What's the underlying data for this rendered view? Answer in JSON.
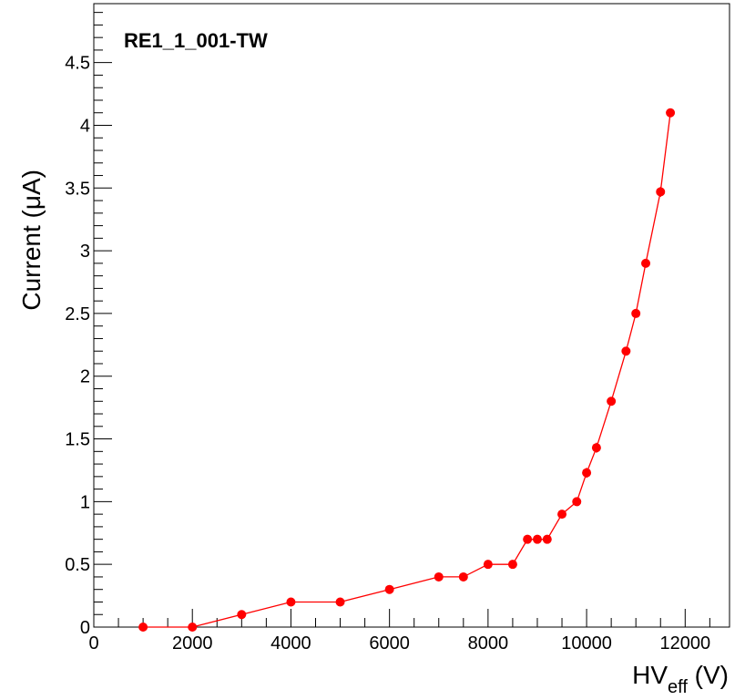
{
  "chart_data": {
    "type": "scatter",
    "title": "RE1_1_001-TW",
    "xlabel": "HV",
    "xlabel_sub": "eff",
    "xlabel_unit": " (V)",
    "ylabel": "Current (μA)",
    "xlim": [
      0,
      12900
    ],
    "ylim": [
      0,
      4.97
    ],
    "x_ticks": [
      0,
      2000,
      4000,
      6000,
      8000,
      10000,
      12000
    ],
    "y_ticks": [
      0,
      0.5,
      1,
      1.5,
      2,
      2.5,
      3,
      3.5,
      4,
      4.5
    ],
    "y_tick_labels": [
      "0",
      "0.5",
      "1",
      "1.5",
      "2",
      "2.5",
      "3",
      "3.5",
      "4",
      "4.5"
    ],
    "x_minor_step": 500,
    "y_minor_step": 0.1,
    "grid": false,
    "series": [
      {
        "color": "#ff0000",
        "x": [
          1000,
          2000,
          3000,
          4000,
          5000,
          6000,
          7000,
          7500,
          8000,
          8500,
          8800,
          9000,
          9200,
          9500,
          9800,
          10000,
          10200,
          10500,
          10800,
          11000,
          11200,
          11500,
          11700
        ],
        "y": [
          0.0,
          0.0,
          0.1,
          0.2,
          0.2,
          0.3,
          0.4,
          0.4,
          0.5,
          0.5,
          0.7,
          0.7,
          0.7,
          0.9,
          1.0,
          1.23,
          1.43,
          1.8,
          2.2,
          2.5,
          2.9,
          3.47,
          4.1
        ],
        "yerr": [
          0.01,
          0.01,
          0.01,
          0.01,
          0.01,
          0.01,
          0.01,
          0.01,
          0.01,
          0.01,
          0.01,
          0.01,
          0.01,
          0.01,
          0.02,
          0.04,
          0.04,
          0.02,
          0.02,
          0.02,
          0.02,
          0.04,
          0.02
        ]
      }
    ]
  }
}
